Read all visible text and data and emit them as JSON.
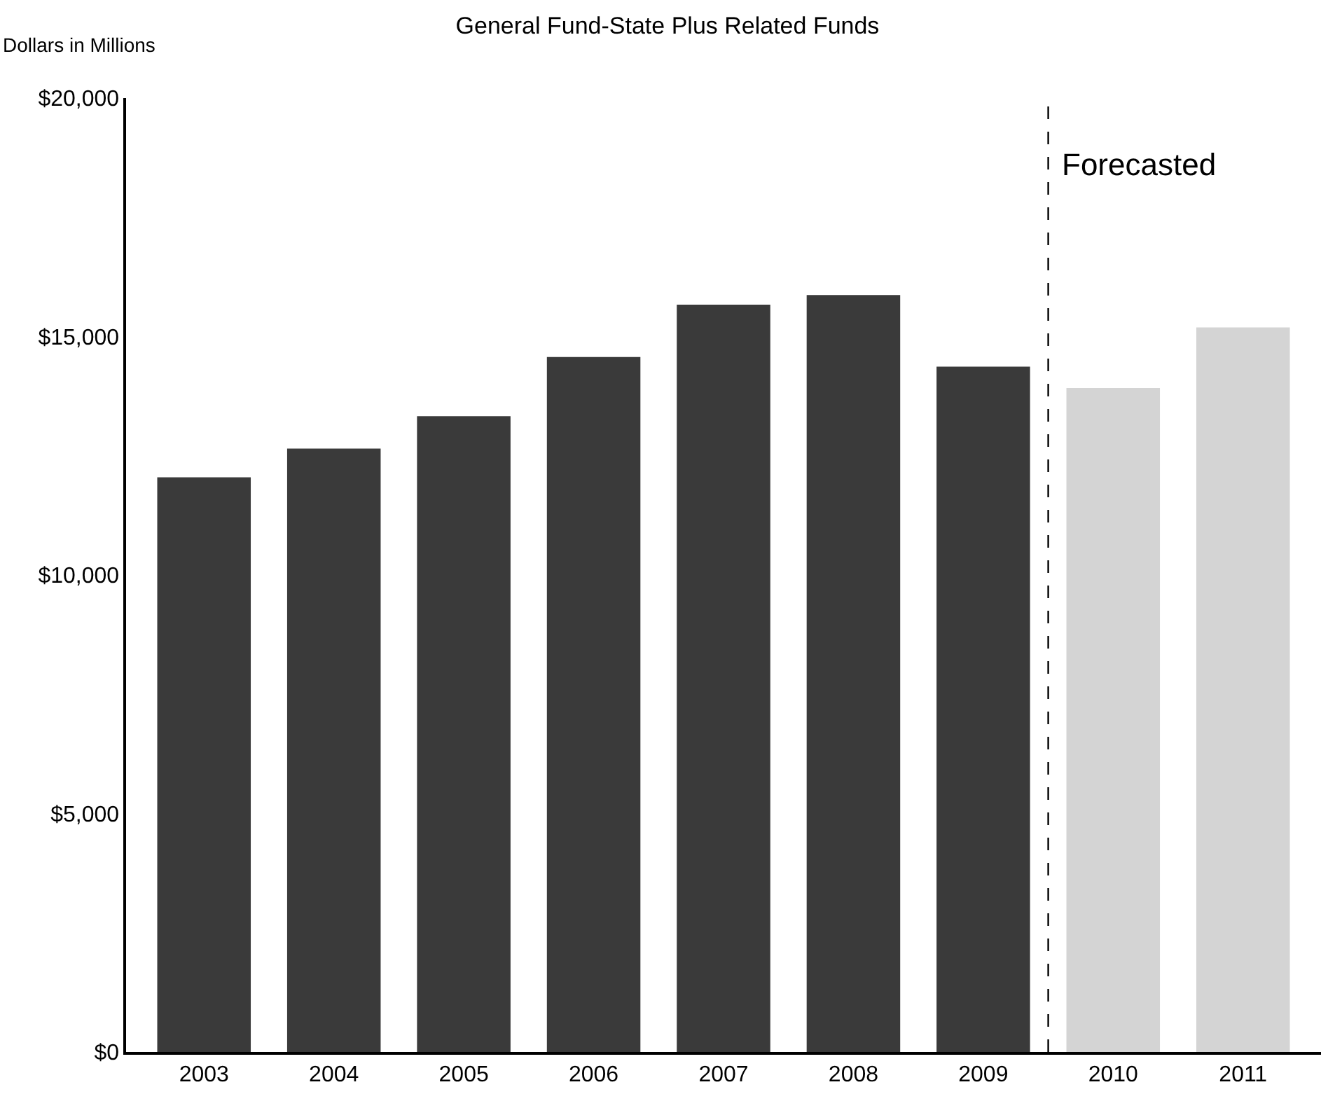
{
  "chart_data": {
    "type": "bar",
    "title": "General Fund-State Plus Related Funds",
    "ylabel": "Dollars in Millions",
    "x": [
      2003,
      2004,
      2005,
      2006,
      2007,
      2008,
      2009,
      2010,
      2011
    ],
    "values": [
      12050,
      12650,
      13330,
      14570,
      15670,
      15870,
      14370,
      13920,
      15190
    ],
    "colors": [
      "#3a3a3a",
      "#3a3a3a",
      "#3a3a3a",
      "#3a3a3a",
      "#3a3a3a",
      "#3a3a3a",
      "#3a3a3a",
      "#d4d4d4",
      "#d4d4d4"
    ],
    "xlim": [
      2002.4,
      2011.6
    ],
    "xticks": [
      2003,
      2004,
      2005,
      2006,
      2007,
      2008,
      2009,
      2010,
      2011
    ],
    "ylim": [
      0,
      20000
    ],
    "yticks": [
      {
        "value": 0,
        "label": "$0"
      },
      {
        "value": 5000,
        "label": "$5,000"
      },
      {
        "value": 10000,
        "label": "$10,000"
      },
      {
        "value": 15000,
        "label": "$15,000"
      },
      {
        "value": 20000,
        "label": "$20,000"
      }
    ],
    "ref_lines": [
      {
        "axis": "x",
        "value": 2009.5,
        "label": "Forecasted",
        "color": "#000000",
        "line_style": "dashed"
      }
    ]
  }
}
